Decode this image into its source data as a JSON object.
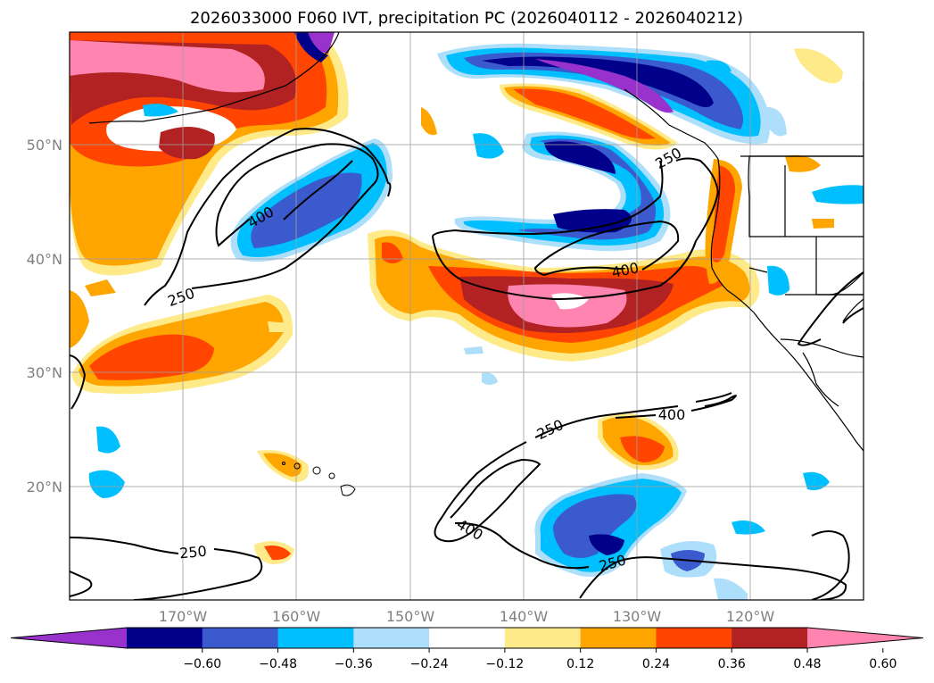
{
  "title": "2026033000 F060 IVT, precipitation PC (2026040112 - 2026040212)",
  "map": {
    "lat_labels": [
      "50°N",
      "40°N",
      "30°N",
      "20°N"
    ],
    "lon_labels": [
      "170°W",
      "160°W",
      "150°W",
      "140°W",
      "130°W",
      "120°W"
    ],
    "gridlines": true
  },
  "ivt_contours": {
    "levels": [
      250,
      400
    ],
    "labels": [
      "250",
      "250",
      "250",
      "250",
      "250",
      "400",
      "400",
      "400",
      "400"
    ]
  },
  "colorbar": {
    "ticks": [
      "−0.60",
      "−0.48",
      "−0.36",
      "−0.24",
      "−0.12",
      "0.12",
      "0.24",
      "0.36",
      "0.48",
      "0.60"
    ],
    "colors": [
      "#9932CC",
      "#00008B",
      "#3A5ACD",
      "#00BFFF",
      "#ADDFFA",
      "#FFFFFF",
      "#FFEA8A",
      "#FFA500",
      "#FF4500",
      "#B22222",
      "#FF85B0"
    ],
    "extend": "both"
  }
}
